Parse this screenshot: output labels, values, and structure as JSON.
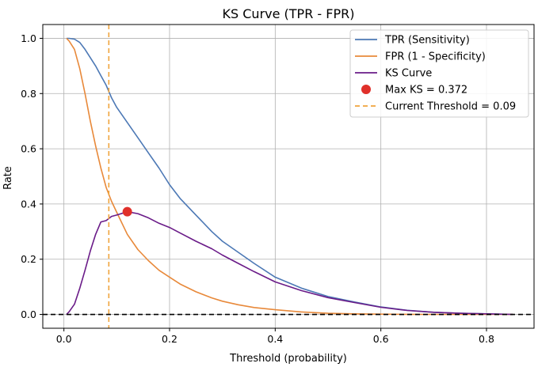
{
  "chart_data": {
    "type": "line",
    "title": "KS Curve (TPR - FPR)",
    "xlabel": "Threshold (probability)",
    "ylabel": "Rate",
    "xlim": [
      -0.04,
      0.89
    ],
    "ylim": [
      -0.05,
      1.05
    ],
    "xticks": [
      0.0,
      0.2,
      0.4,
      0.6,
      0.8
    ],
    "xtick_labels": [
      "0.0",
      "0.2",
      "0.4",
      "0.6",
      "0.8"
    ],
    "yticks": [
      0.0,
      0.2,
      0.4,
      0.6,
      0.8,
      1.0
    ],
    "ytick_labels": [
      "0.0",
      "0.2",
      "0.4",
      "0.6",
      "0.8",
      "1.0"
    ],
    "grid": true,
    "legend_position": "top-right",
    "series": [
      {
        "name": "TPR (Sensitivity)",
        "color": "#4c78b5",
        "x": [
          0.005,
          0.01,
          0.02,
          0.03,
          0.04,
          0.05,
          0.06,
          0.07,
          0.08,
          0.09,
          0.1,
          0.12,
          0.14,
          0.16,
          0.18,
          0.2,
          0.22,
          0.25,
          0.28,
          0.3,
          0.33,
          0.36,
          0.4,
          0.45,
          0.5,
          0.55,
          0.6,
          0.65,
          0.7,
          0.75,
          0.8,
          0.85
        ],
        "y": [
          1.0,
          1.0,
          0.997,
          0.985,
          0.96,
          0.93,
          0.9,
          0.865,
          0.83,
          0.785,
          0.75,
          0.695,
          0.64,
          0.585,
          0.53,
          0.47,
          0.42,
          0.36,
          0.3,
          0.265,
          0.225,
          0.185,
          0.135,
          0.095,
          0.065,
          0.045,
          0.027,
          0.015,
          0.008,
          0.004,
          0.002,
          0.0
        ]
      },
      {
        "name": "FPR (1 - Specificity)",
        "color": "#e8893a",
        "x": [
          0.005,
          0.01,
          0.02,
          0.03,
          0.04,
          0.05,
          0.06,
          0.07,
          0.08,
          0.09,
          0.1,
          0.12,
          0.14,
          0.16,
          0.18,
          0.2,
          0.22,
          0.25,
          0.28,
          0.3,
          0.33,
          0.36,
          0.4,
          0.45,
          0.5,
          0.55,
          0.6,
          0.65,
          0.7,
          0.75,
          0.8,
          0.85
        ],
        "y": [
          1.0,
          0.99,
          0.96,
          0.89,
          0.8,
          0.7,
          0.61,
          0.53,
          0.46,
          0.41,
          0.37,
          0.29,
          0.235,
          0.195,
          0.16,
          0.135,
          0.11,
          0.082,
          0.06,
          0.048,
          0.035,
          0.025,
          0.017,
          0.009,
          0.004,
          0.002,
          0.001,
          0.0005,
          0.0,
          0.0,
          0.0,
          0.0
        ]
      },
      {
        "name": "KS Curve",
        "color": "#6a1b88",
        "x": [
          0.005,
          0.01,
          0.02,
          0.03,
          0.04,
          0.05,
          0.06,
          0.07,
          0.08,
          0.09,
          0.1,
          0.12,
          0.14,
          0.16,
          0.18,
          0.2,
          0.22,
          0.25,
          0.28,
          0.3,
          0.33,
          0.36,
          0.4,
          0.45,
          0.5,
          0.55,
          0.6,
          0.65,
          0.7,
          0.75,
          0.8,
          0.85
        ],
        "y": [
          0.0,
          0.01,
          0.037,
          0.095,
          0.16,
          0.23,
          0.29,
          0.335,
          0.34,
          0.355,
          0.36,
          0.372,
          0.365,
          0.35,
          0.33,
          0.315,
          0.295,
          0.265,
          0.238,
          0.215,
          0.185,
          0.155,
          0.118,
          0.086,
          0.061,
          0.043,
          0.026,
          0.0145,
          0.008,
          0.004,
          0.002,
          0.0
        ]
      }
    ],
    "max_ks": {
      "label": "Max KS = 0.372",
      "x": 0.12,
      "y": 0.372,
      "color": "#e0302a"
    },
    "threshold": {
      "label": "Current Threshold = 0.09",
      "x": 0.085,
      "color": "#f0a43c"
    },
    "zero_line": {
      "y": 0.0,
      "color": "#000000"
    }
  }
}
